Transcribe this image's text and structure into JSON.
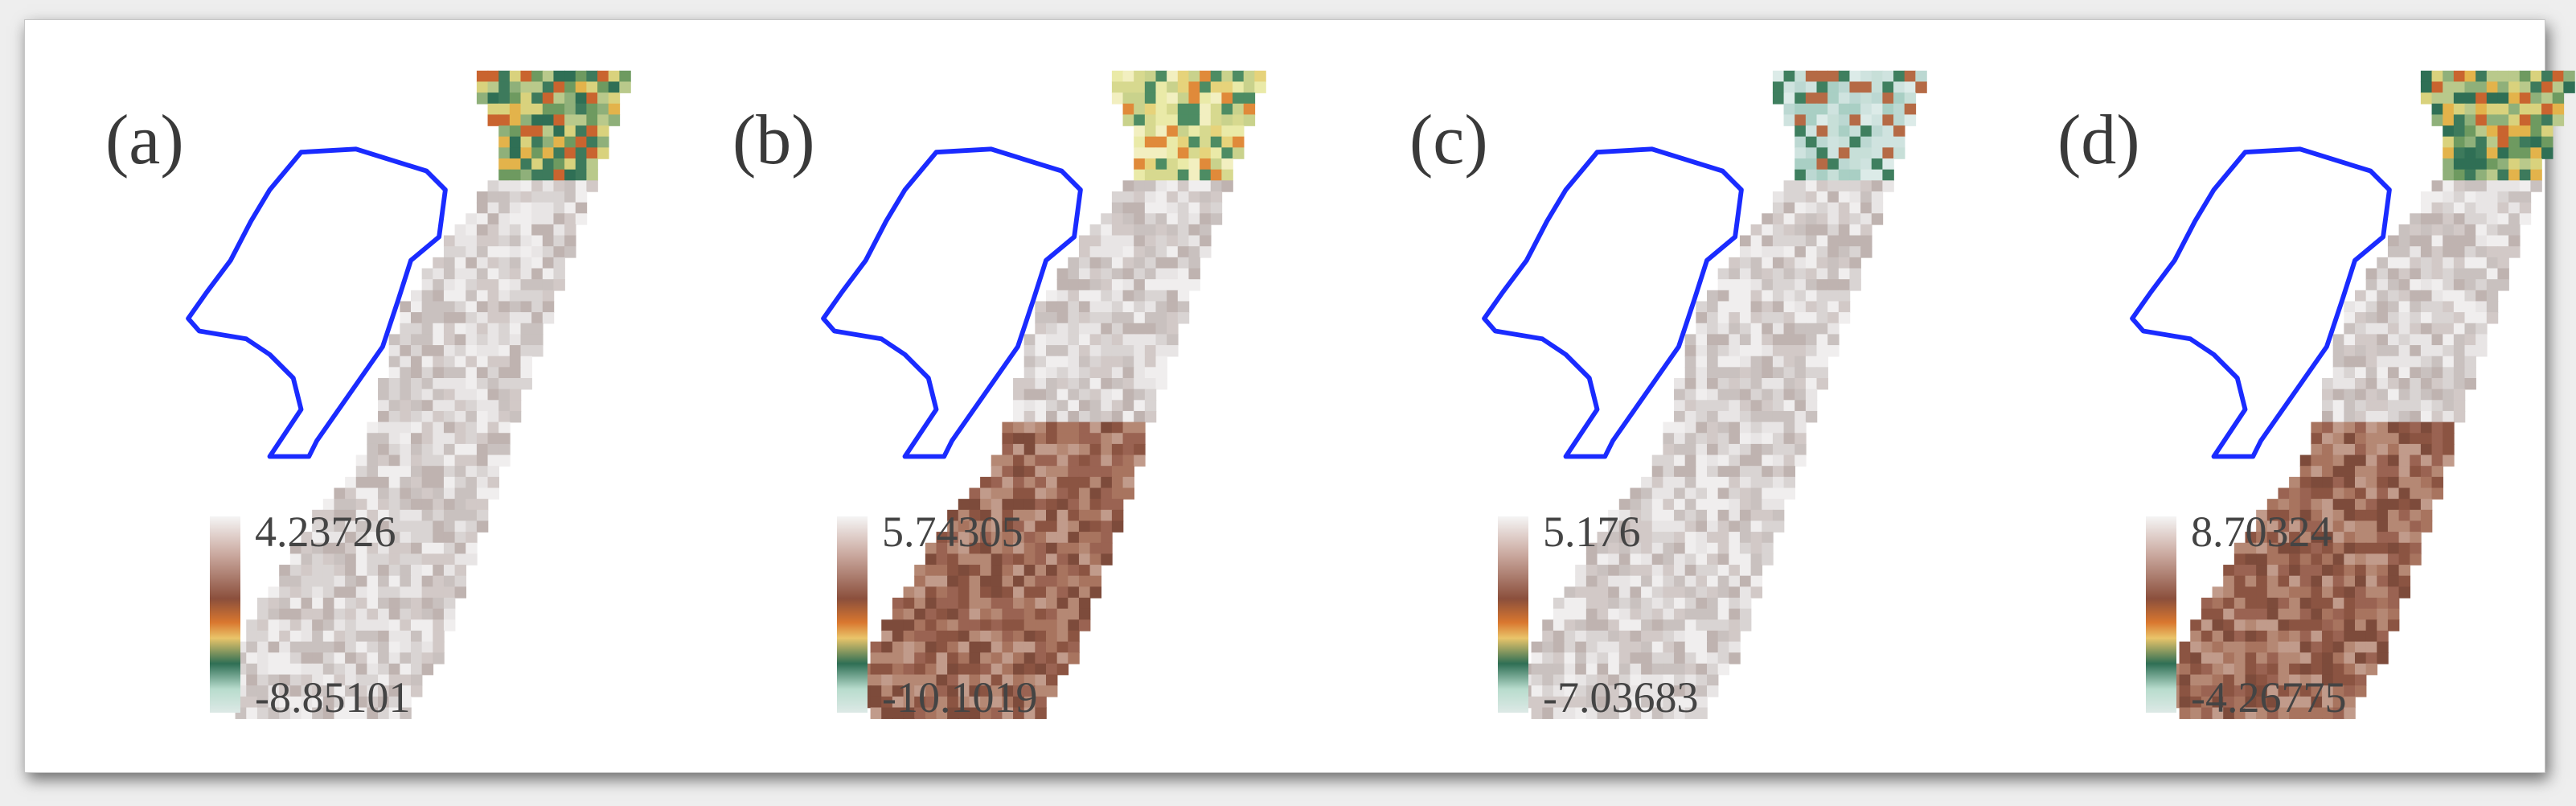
{
  "figure": {
    "panels": [
      {
        "label": "(a)",
        "legend": {
          "max": "4.23726",
          "min": "-8.85101"
        },
        "palette": {
          "north": "green",
          "south": "grey"
        }
      },
      {
        "label": "(b)",
        "legend": {
          "max": "5.74305",
          "min": "-10.1019"
        },
        "palette": {
          "north": "yellow",
          "south": "brown"
        }
      },
      {
        "label": "(c)",
        "legend": {
          "max": "5.176",
          "min": "-7.03683"
        },
        "palette": {
          "north": "cyan",
          "south": "grey"
        }
      },
      {
        "label": "(d)",
        "legend": {
          "max": "8.70324",
          "min": "-4.26775"
        },
        "palette": {
          "north": "green",
          "south": "brown"
        }
      }
    ],
    "colors": {
      "boundary": "#1a2bff",
      "colormap": [
        "#dde9e6",
        "#b8dccd",
        "#2f6f55",
        "#e9c46a",
        "#d9772f",
        "#8b4f3c",
        "#c9a79d",
        "#f5f5f5"
      ]
    }
  }
}
